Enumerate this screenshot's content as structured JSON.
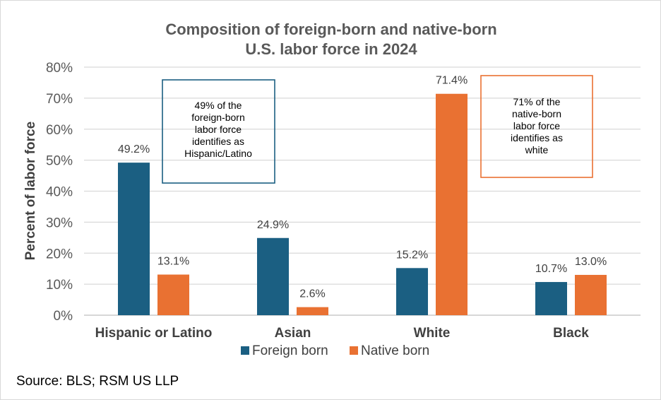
{
  "chart_data": {
    "type": "bar",
    "title_lines": [
      "Composition of foreign-born and native-born",
      "U.S. labor force in 2024"
    ],
    "ylabel": "Percent of labor force",
    "xlabel": "",
    "ylim": [
      0,
      80
    ],
    "y_ticks": [
      0,
      10,
      20,
      30,
      40,
      50,
      60,
      70,
      80
    ],
    "y_tick_labels": [
      "0%",
      "10%",
      "20%",
      "30%",
      "40%",
      "50%",
      "60%",
      "70%",
      "80%"
    ],
    "grid": true,
    "legend_position": "bottom",
    "categories": [
      "Hispanic or Latino",
      "Asian",
      "White",
      "Black"
    ],
    "series": [
      {
        "name": "Foreign born",
        "color": "#1b5f82",
        "values": [
          49.2,
          24.9,
          15.2,
          10.7
        ],
        "labels": [
          "49.2%",
          "24.9%",
          "15.2%",
          "10.7%"
        ]
      },
      {
        "name": "Native born",
        "color": "#e97132",
        "values": [
          13.1,
          2.6,
          71.4,
          13.0
        ],
        "labels": [
          "13.1%",
          "2.6%",
          "71.4%",
          "13.0%"
        ]
      }
    ],
    "annotations": [
      {
        "lines": [
          "49% of the",
          "foreign-born",
          "labor force",
          "identifies as",
          "Hispanic/Latino"
        ],
        "border_color": "#1b5f82"
      },
      {
        "lines": [
          "71% of the",
          "native-born",
          "labor force",
          "identifies as",
          "white"
        ],
        "border_color": "#e97132"
      }
    ]
  },
  "source": "Source: BLS; RSM US LLP"
}
